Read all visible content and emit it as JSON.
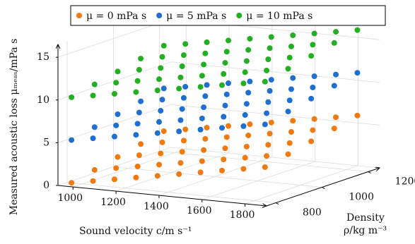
{
  "chart_data": {
    "type": "scatter3d",
    "x_label": "Sound velocity c/m s⁻¹",
    "y_label": "Density",
    "y_label_unit": "ρ/kg m⁻³",
    "z_label": "Measured acoustic loss μₘₑₐₛ/mPa s",
    "xlim": [
      930,
      1900
    ],
    "xticks": [
      1000,
      1200,
      1400,
      1600,
      1800
    ],
    "ylim": [
      760,
      1250
    ],
    "yticks": [
      800,
      1000,
      1200
    ],
    "zlim": [
      0,
      16.5
    ],
    "zticks": [
      0,
      5,
      10,
      15
    ],
    "grid": true,
    "x": [
      950,
      1050,
      1150,
      1250,
      1350,
      1450,
      1550,
      1650,
      1750,
      1850,
      950,
      1050,
      1150,
      1250,
      1350,
      1450,
      1550,
      1650,
      1750,
      1850,
      950,
      1050,
      1150,
      1250,
      1350,
      1450,
      1550,
      1650,
      1750,
      1850,
      950,
      1050,
      1150,
      1250,
      1350,
      1450,
      1550,
      1650,
      1750,
      1850,
      950,
      1050,
      1150,
      1250,
      1350,
      1450,
      1550,
      1650,
      1750,
      1850
    ],
    "y": [
      800,
      800,
      800,
      800,
      800,
      800,
      800,
      800,
      800,
      800,
      900,
      900,
      900,
      900,
      900,
      900,
      900,
      900,
      900,
      900,
      1000,
      1000,
      1000,
      1000,
      1000,
      1000,
      1000,
      1000,
      1000,
      1000,
      1100,
      1100,
      1100,
      1100,
      1100,
      1100,
      1100,
      1100,
      1100,
      1100,
      1200,
      1200,
      1200,
      1200,
      1200,
      1200,
      1200,
      1200,
      1200,
      1200
    ],
    "series": [
      {
        "name": "μ = 0 mPa s",
        "color": "#f07a10",
        "values": [
          0,
          0.45,
          0.9,
          1.35,
          1.8,
          2.25,
          2.7,
          3.15,
          3.6,
          4.05,
          0.6,
          1.05,
          1.5,
          1.95,
          2.4,
          2.85,
          3.3,
          3.75,
          4.2,
          4.65,
          1.2,
          1.65,
          2.1,
          2.55,
          3,
          3.45,
          3.9,
          4.35,
          4.8,
          5.25,
          1.8,
          2.25,
          2.7,
          3.15,
          3.6,
          4.05,
          4.5,
          4.95,
          5.4,
          5.85,
          2.4,
          2.85,
          3.3,
          3.75,
          4.2,
          4.65,
          5.1,
          5.55,
          6,
          6.45
        ]
      },
      {
        "name": "μ = 5 mPa s",
        "color": "#1f6fd0",
        "values": [
          5,
          5.45,
          5.9,
          6.35,
          6.8,
          7.25,
          7.7,
          8.15,
          8.6,
          9.05,
          5.6,
          6.05,
          6.5,
          6.95,
          7.4,
          7.85,
          8.3,
          8.75,
          9.2,
          9.65,
          6.2,
          6.65,
          7.1,
          7.55,
          8,
          8.45,
          8.9,
          9.35,
          9.8,
          10.25,
          6.8,
          7.25,
          7.7,
          8.15,
          8.6,
          9.05,
          9.5,
          9.95,
          10.4,
          10.85,
          7.4,
          7.85,
          8.3,
          8.75,
          9.2,
          9.65,
          10.1,
          10.55,
          11,
          11.45
        ]
      },
      {
        "name": "μ = 10 mPa s",
        "color": "#22b022",
        "values": [
          10,
          10.45,
          10.9,
          11.35,
          11.8,
          12.25,
          12.7,
          13.15,
          13.6,
          14.05,
          10.6,
          11.05,
          11.5,
          11.95,
          12.4,
          12.85,
          13.3,
          13.75,
          14.2,
          14.65,
          11.2,
          11.65,
          12.1,
          12.55,
          13,
          13.45,
          13.9,
          14.35,
          14.8,
          15.25,
          11.8,
          12.25,
          12.7,
          13.15,
          13.6,
          14.05,
          14.5,
          14.95,
          15.4,
          15.85,
          12.4,
          12.85,
          13.3,
          13.75,
          14.2,
          14.65,
          15.1,
          15.55,
          16,
          16.45
        ]
      }
    ]
  }
}
